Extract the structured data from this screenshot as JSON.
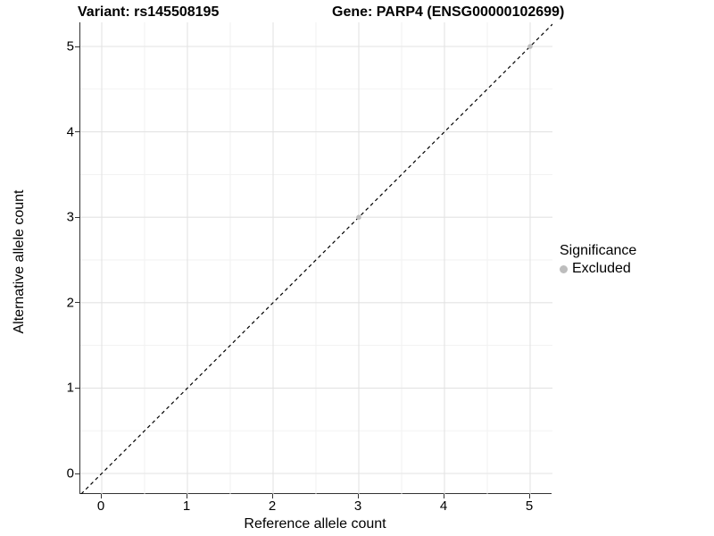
{
  "title": {
    "variant": "Variant: rs145508195",
    "gene": "Gene: PARP4 (ENSG00000102699)"
  },
  "chart_data": {
    "type": "scatter",
    "title_left": "Variant: rs145508195",
    "title_right": "Gene: PARP4 (ENSG00000102699)",
    "xlabel": "Reference allele count",
    "ylabel": "Alternative allele count",
    "xlim": [
      -0.25,
      5.26
    ],
    "ylim": [
      -0.24,
      5.28
    ],
    "x_ticks": [
      0,
      1,
      2,
      3,
      4,
      5
    ],
    "y_ticks": [
      0,
      1,
      2,
      3,
      4,
      5
    ],
    "grid": true,
    "colors": {
      "major_grid": "#e3e3e3",
      "minor_grid": "#f1f1f1",
      "axis_line": "#333333",
      "excluded_point": "#bdbdbd",
      "identity_line": "#000000"
    },
    "series": [
      {
        "name": "Excluded",
        "color": "#bdbdbd",
        "points": [
          [
            3,
            3
          ],
          [
            5,
            5
          ]
        ]
      }
    ],
    "reference_line": {
      "style": "dashed",
      "slope": 1,
      "intercept": 0,
      "color": "#000000"
    },
    "legend": {
      "position": "right",
      "title": "Significance",
      "entries": [
        {
          "label": "Excluded",
          "color": "#bdbdbd"
        }
      ]
    }
  }
}
